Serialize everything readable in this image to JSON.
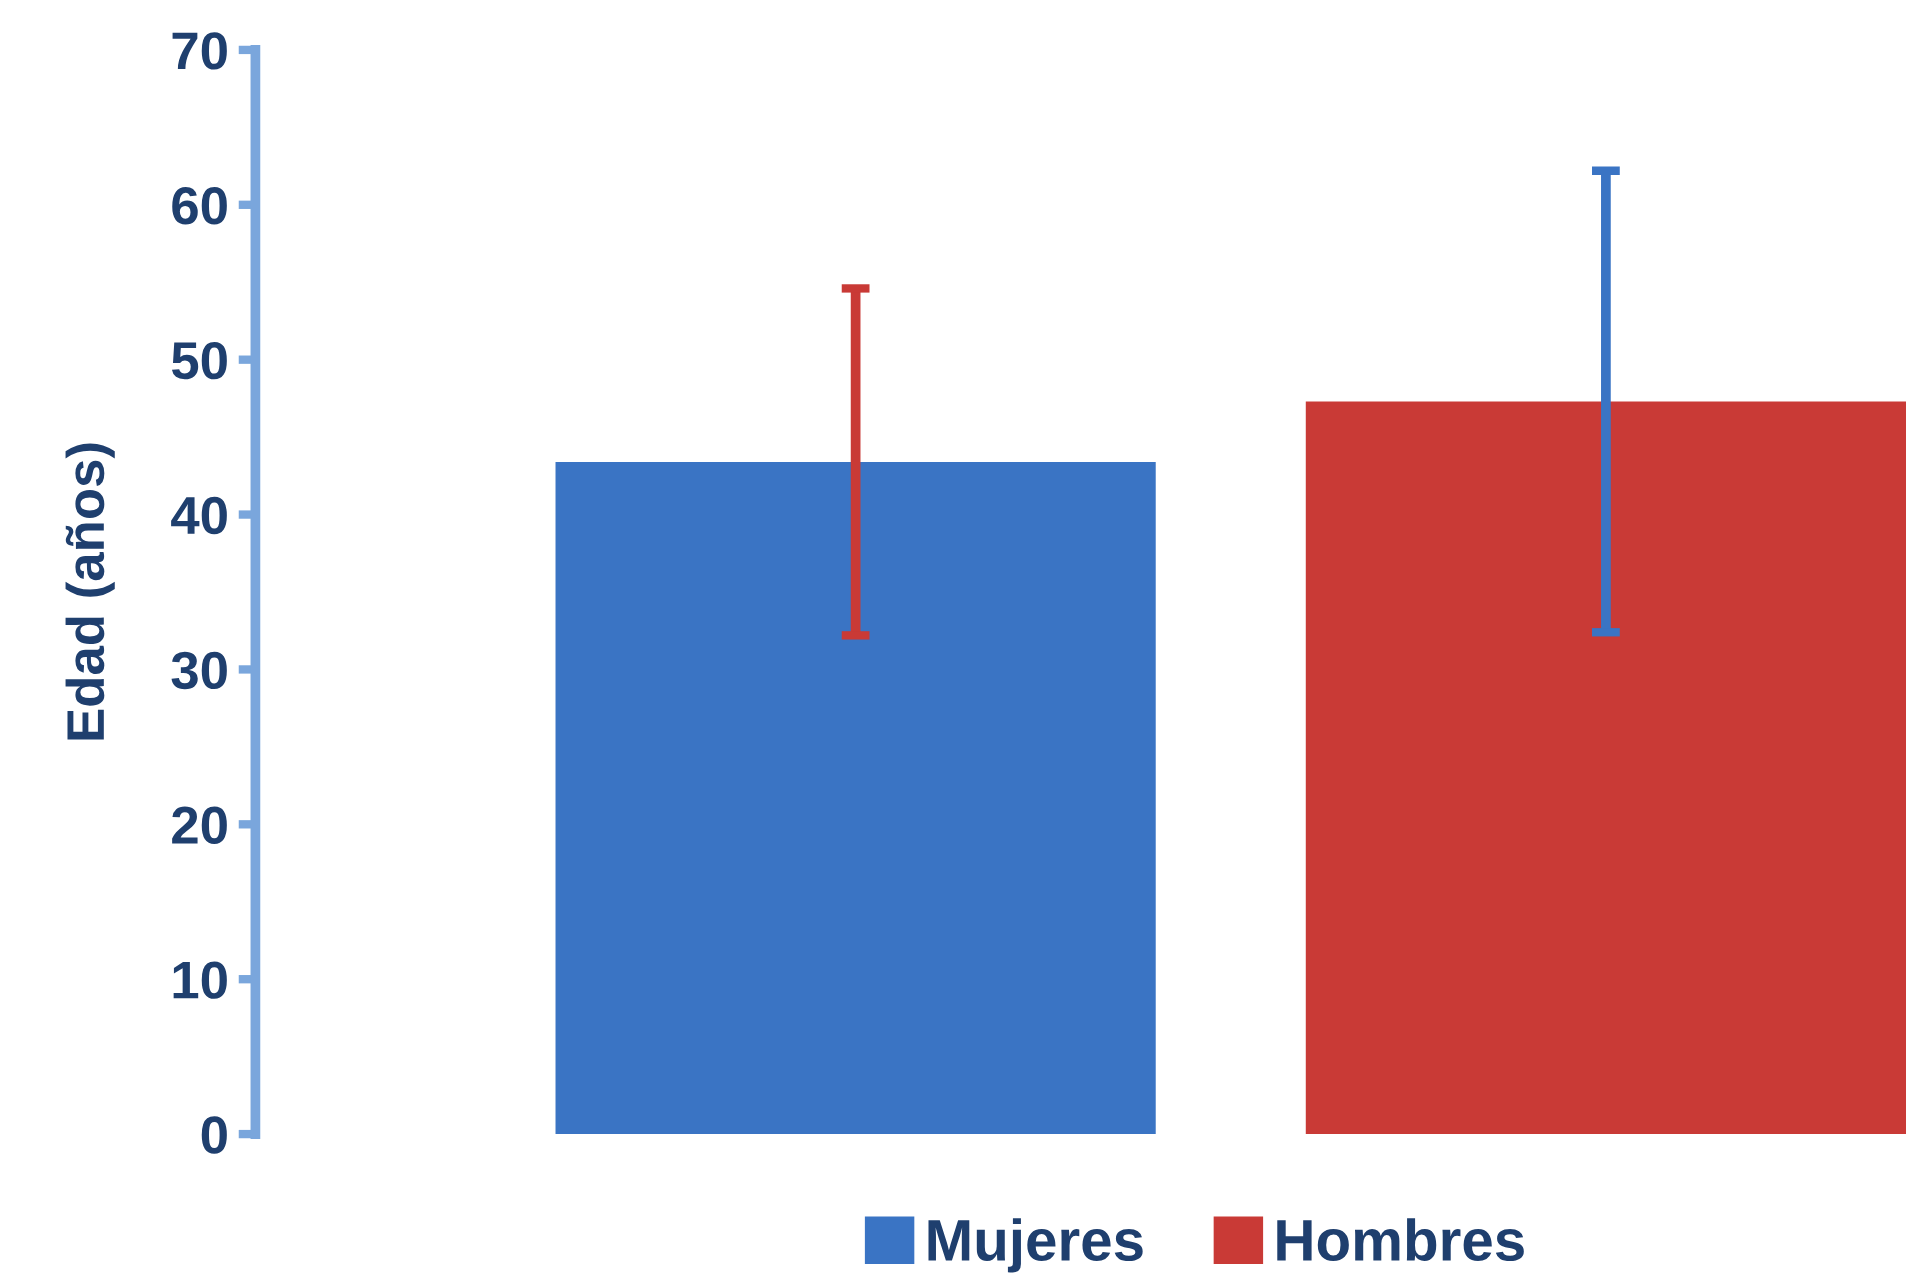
{
  "chart_data": {
    "type": "bar",
    "ylabel": "Edad (años)",
    "categories": [
      null
    ],
    "series": [
      {
        "name": "Mujeres",
        "color": "#3a74c4",
        "values": [
          43.4
        ],
        "errors": [
          11.2
        ]
      },
      {
        "name": "Hombres",
        "color": "#c93a36",
        "values": [
          47.3
        ],
        "errors": [
          14.9
        ]
      }
    ],
    "ylim": [
      0,
      70
    ],
    "yticks": [
      0,
      10,
      20,
      30,
      40,
      50,
      60,
      70
    ],
    "grid": false,
    "legend": "bottom"
  }
}
